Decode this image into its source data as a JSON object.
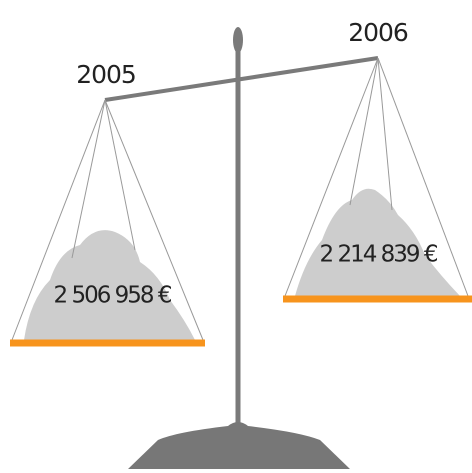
{
  "pans": [
    {
      "year": "2005",
      "amount": "2 506 958 €"
    },
    {
      "year": "2006",
      "amount": "2 214 839 €"
    }
  ]
}
